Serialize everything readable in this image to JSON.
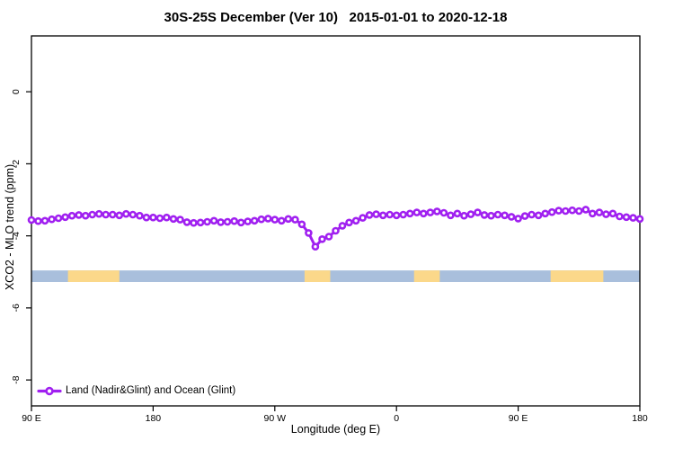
{
  "title": "30S-25S December (Ver 10)   2015-01-01 to 2020-12-18",
  "chart_data": {
    "type": "line",
    "title": "30S-25S December (Ver 10)   2015-01-01 to 2020-12-18",
    "xlabel": "Longitude (deg E)",
    "ylabel": "XCO2 - MLO trend (ppm)",
    "xlim": [
      90,
      540
    ],
    "ylim": [
      -8.72,
      1.55
    ],
    "grid": false,
    "x_ticks": [
      {
        "value": 90,
        "label": "90 E"
      },
      {
        "value": 180,
        "label": "180"
      },
      {
        "value": 270,
        "label": "90 W"
      },
      {
        "value": 360,
        "label": "0"
      },
      {
        "value": 450,
        "label": "90 E"
      },
      {
        "value": 540,
        "label": "180"
      }
    ],
    "y_ticks": [
      {
        "value": 0,
        "label": "0"
      },
      {
        "value": -2,
        "label": "-2"
      },
      {
        "value": -4,
        "label": "-4"
      },
      {
        "value": -6,
        "label": "-6"
      },
      {
        "value": -8,
        "label": "-8"
      }
    ],
    "series": [
      {
        "name": "Land (Nadir&Glint) and Ocean (Glint)",
        "color": "#A020F0",
        "marker": "open-circle",
        "points": [
          [
            90,
            -3.56
          ],
          [
            95,
            -3.59
          ],
          [
            100,
            -3.58
          ],
          [
            105,
            -3.54
          ],
          [
            110,
            -3.51
          ],
          [
            115,
            -3.48
          ],
          [
            120,
            -3.44
          ],
          [
            125,
            -3.42
          ],
          [
            130,
            -3.44
          ],
          [
            135,
            -3.41
          ],
          [
            140,
            -3.39
          ],
          [
            145,
            -3.41
          ],
          [
            150,
            -3.41
          ],
          [
            155,
            -3.43
          ],
          [
            160,
            -3.39
          ],
          [
            165,
            -3.41
          ],
          [
            170,
            -3.44
          ],
          [
            175,
            -3.49
          ],
          [
            180,
            -3.49
          ],
          [
            185,
            -3.51
          ],
          [
            190,
            -3.49
          ],
          [
            195,
            -3.53
          ],
          [
            200,
            -3.55
          ],
          [
            205,
            -3.62
          ],
          [
            210,
            -3.64
          ],
          [
            215,
            -3.63
          ],
          [
            220,
            -3.61
          ],
          [
            225,
            -3.58
          ],
          [
            230,
            -3.62
          ],
          [
            235,
            -3.61
          ],
          [
            240,
            -3.59
          ],
          [
            245,
            -3.63
          ],
          [
            250,
            -3.6
          ],
          [
            255,
            -3.58
          ],
          [
            260,
            -3.54
          ],
          [
            265,
            -3.52
          ],
          [
            270,
            -3.55
          ],
          [
            275,
            -3.58
          ],
          [
            280,
            -3.53
          ],
          [
            285,
            -3.55
          ],
          [
            290,
            -3.68
          ],
          [
            295,
            -3.92
          ],
          [
            300,
            -4.3
          ],
          [
            305,
            -4.09
          ],
          [
            310,
            -4.02
          ],
          [
            315,
            -3.86
          ],
          [
            320,
            -3.72
          ],
          [
            325,
            -3.63
          ],
          [
            330,
            -3.58
          ],
          [
            335,
            -3.5
          ],
          [
            340,
            -3.42
          ],
          [
            345,
            -3.4
          ],
          [
            350,
            -3.43
          ],
          [
            355,
            -3.41
          ],
          [
            360,
            -3.43
          ],
          [
            365,
            -3.41
          ],
          [
            370,
            -3.38
          ],
          [
            375,
            -3.35
          ],
          [
            380,
            -3.38
          ],
          [
            385,
            -3.35
          ],
          [
            390,
            -3.32
          ],
          [
            395,
            -3.36
          ],
          [
            400,
            -3.43
          ],
          [
            405,
            -3.38
          ],
          [
            410,
            -3.44
          ],
          [
            415,
            -3.4
          ],
          [
            420,
            -3.35
          ],
          [
            425,
            -3.42
          ],
          [
            430,
            -3.44
          ],
          [
            435,
            -3.41
          ],
          [
            440,
            -3.43
          ],
          [
            445,
            -3.47
          ],
          [
            450,
            -3.52
          ],
          [
            455,
            -3.45
          ],
          [
            460,
            -3.41
          ],
          [
            465,
            -3.43
          ],
          [
            470,
            -3.38
          ],
          [
            475,
            -3.34
          ],
          [
            480,
            -3.3
          ],
          [
            485,
            -3.31
          ],
          [
            490,
            -3.29
          ],
          [
            495,
            -3.31
          ],
          [
            500,
            -3.27
          ],
          [
            505,
            -3.38
          ],
          [
            510,
            -3.35
          ],
          [
            515,
            -3.4
          ],
          [
            520,
            -3.38
          ],
          [
            525,
            -3.46
          ],
          [
            530,
            -3.48
          ],
          [
            535,
            -3.5
          ],
          [
            540,
            -3.53
          ]
        ]
      }
    ],
    "surface_strip": {
      "y_range": [
        -4.96,
        -5.28
      ],
      "ocean_color": "#A9BFDC",
      "land_color": "#FBD88A",
      "land_segments": [
        [
          117,
          155
        ],
        [
          292,
          311
        ],
        [
          373,
          392
        ],
        [
          474,
          513
        ]
      ]
    },
    "legend": {
      "position": "bottom-left",
      "entries": [
        {
          "label": "Land (Nadir&Glint) and Ocean (Glint)",
          "color": "#A020F0"
        }
      ]
    },
    "axis_color": "#000000"
  }
}
